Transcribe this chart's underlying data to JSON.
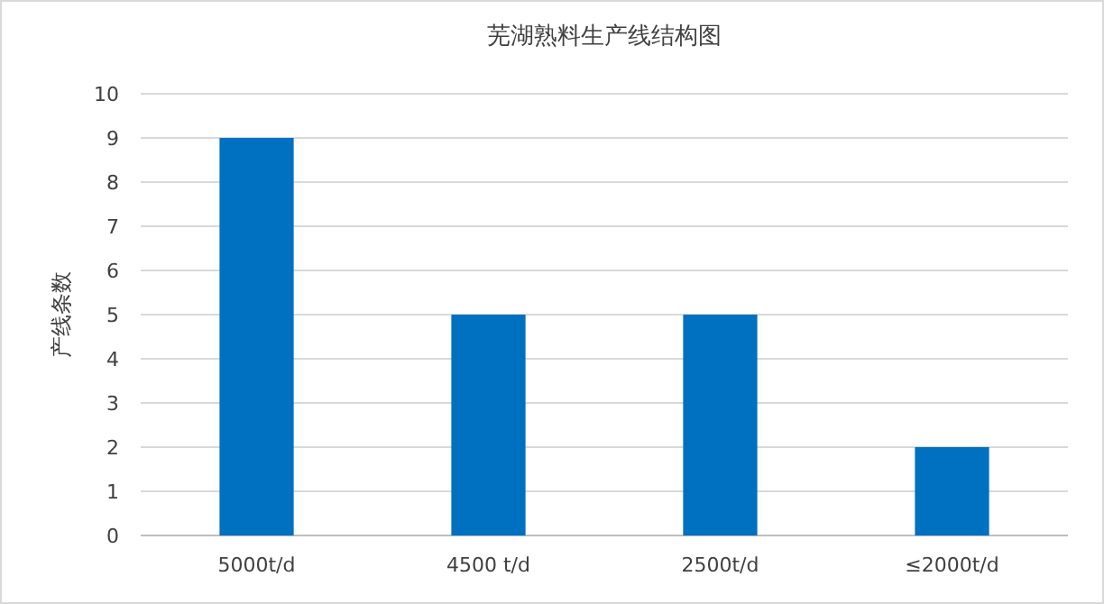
{
  "chart_data": {
    "type": "bar",
    "title": "芜湖熟料生产线结构图",
    "ylabel": "产线条数",
    "categories": [
      "5000t/d",
      "4500 t/d",
      "2500t/d",
      "≤2000t/d"
    ],
    "series": [
      {
        "color": "#0070c0",
        "values": [
          9,
          5,
          5,
          2
        ]
      }
    ],
    "ylim": [
      0,
      10
    ],
    "yticks": [
      0,
      1,
      2,
      3,
      4,
      5,
      6,
      7,
      8,
      9,
      10
    ],
    "grid": "y"
  }
}
